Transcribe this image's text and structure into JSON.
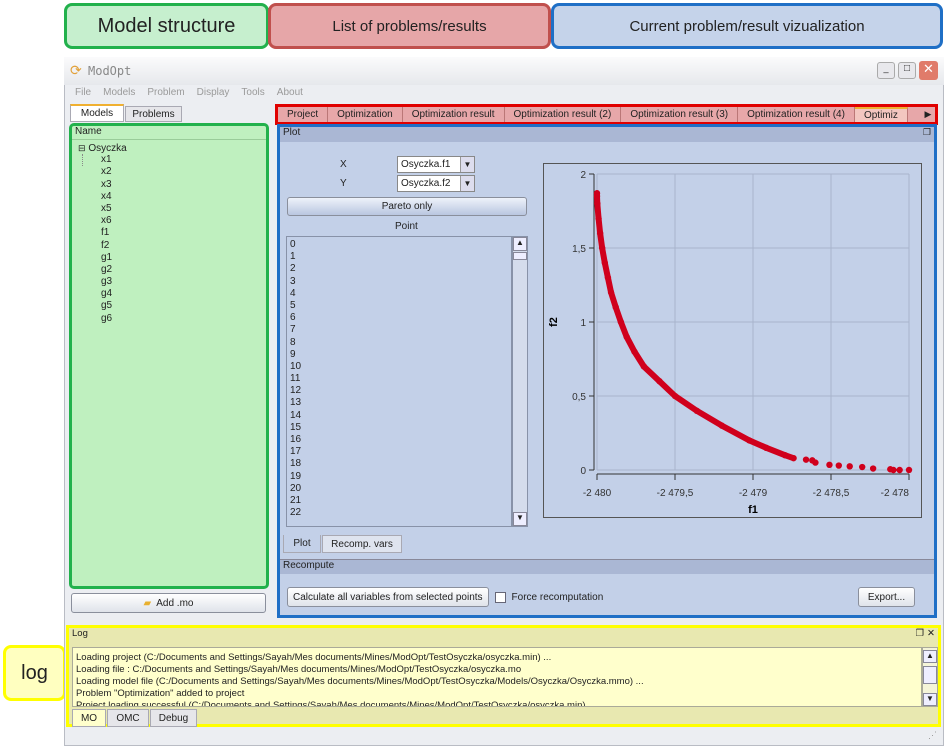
{
  "annotations": {
    "model_structure": "Model structure",
    "problems_list": "List of problems/results",
    "visualization": "Current problem/result vizualization",
    "log": "log"
  },
  "window": {
    "title": "ModOpt",
    "icon": "refresh-icon"
  },
  "menu": [
    "File",
    "Models",
    "Problem",
    "Display",
    "Tools",
    "About"
  ],
  "left_tabs": [
    "Models",
    "Problems"
  ],
  "tree": {
    "header": "Name",
    "root": "Osyczka",
    "children": [
      "x1",
      "x2",
      "x3",
      "x4",
      "x5",
      "x6",
      "f1",
      "f2",
      "g1",
      "g2",
      "g3",
      "g4",
      "g5",
      "g6"
    ]
  },
  "add_mo_label": "Add .mo",
  "problem_tabs": [
    "Project",
    "Optimization",
    "Optimization result",
    "Optimization result (2)",
    "Optimization result (3)",
    "Optimization result (4)",
    "Optimiz"
  ],
  "plot_panel": {
    "title": "Plot",
    "x_label": "X",
    "x_value": "Osyczka.f1",
    "y_label": "Y",
    "y_value": "Osyczka.f2",
    "pareto_button": "Pareto only",
    "point_header": "Point",
    "points": [
      "0",
      "1",
      "2",
      "3",
      "4",
      "5",
      "6",
      "7",
      "8",
      "9",
      "10",
      "11",
      "12",
      "13",
      "14",
      "15",
      "16",
      "17",
      "18",
      "19",
      "20",
      "21",
      "22"
    ]
  },
  "bottom_tabs": [
    "Plot",
    "Recomp. vars"
  ],
  "recompute": {
    "title": "Recompute",
    "calc_button": "Calculate all variables from selected points",
    "force_label": "Force recomputation",
    "force_checked": false,
    "export_button": "Export..."
  },
  "log": {
    "title": "Log",
    "lines": [
      "Loading project (C:/Documents and Settings/Sayah/Mes documents/Mines/ModOpt/TestOsyczka/osyczka.min) ...",
      "Loading file : C:/Documents and Settings/Sayah/Mes documents/Mines/ModOpt/TestOsyczka/osyczka.mo",
      "Loading model file (C:/Documents and Settings/Sayah/Mes documents/Mines/ModOpt/TestOsyczka/Models/Osyczka/Osyczka.mmo) ...",
      "Problem \"Optimization\" added to project",
      "Project loading successful (C:/Documents and Settings/Sayah/Mes documents/Mines/ModOpt/TestOsyczka/osyczka.min)"
    ],
    "tabs": [
      "MO",
      "OMC",
      "Debug"
    ]
  },
  "colors": {
    "green": "#22b14c",
    "red": "#e00000",
    "blue": "#1f6fc6",
    "yellow": "#ffff00",
    "points": "#d0001c",
    "plot_bg": "#c3d0e8"
  },
  "chart_data": {
    "type": "scatter",
    "xlabel": "f1",
    "ylabel": "f2",
    "xlim": [
      -2480,
      -2478
    ],
    "ylim": [
      0,
      2
    ],
    "xticks": [
      "-2 480",
      "-2 479,5",
      "-2 479",
      "-2 478,5",
      "-2 478"
    ],
    "xtick_values": [
      -2480,
      -2479.5,
      -2479,
      -2478.5,
      -2478
    ],
    "yticks": [
      "0",
      "0,5",
      "1",
      "1,5",
      "2"
    ],
    "ytick_values": [
      0,
      0.5,
      1,
      1.5,
      2
    ],
    "grid": true,
    "x": [
      -2480,
      -2480,
      -2479.998,
      -2479.99,
      -2479.98,
      -2479.967,
      -2479.95,
      -2479.93,
      -2479.91,
      -2479.88,
      -2479.847,
      -2479.81,
      -2479.76,
      -2479.7,
      -2479.6,
      -2479.5,
      -2479.36,
      -2479.2,
      -2479.024,
      -2478.915,
      -2478.795,
      -2478.74,
      -2478.66,
      -2478.62,
      -2478.6,
      -2478.51,
      -2478.45,
      -2478.38,
      -2478.3,
      -2478.23,
      -2478.12,
      -2478.1,
      -2478.06,
      -2478
    ],
    "y": [
      1.87,
      1.85,
      1.8,
      1.7,
      1.6,
      1.5,
      1.4,
      1.3,
      1.2,
      1.1,
      1.0,
      0.9,
      0.8,
      0.7,
      0.6,
      0.5,
      0.4,
      0.3,
      0.2,
      0.15,
      0.1,
      0.08,
      0.07,
      0.065,
      0.05,
      0.035,
      0.03,
      0.025,
      0.02,
      0.01,
      0.005,
      0,
      0,
      0
    ]
  }
}
